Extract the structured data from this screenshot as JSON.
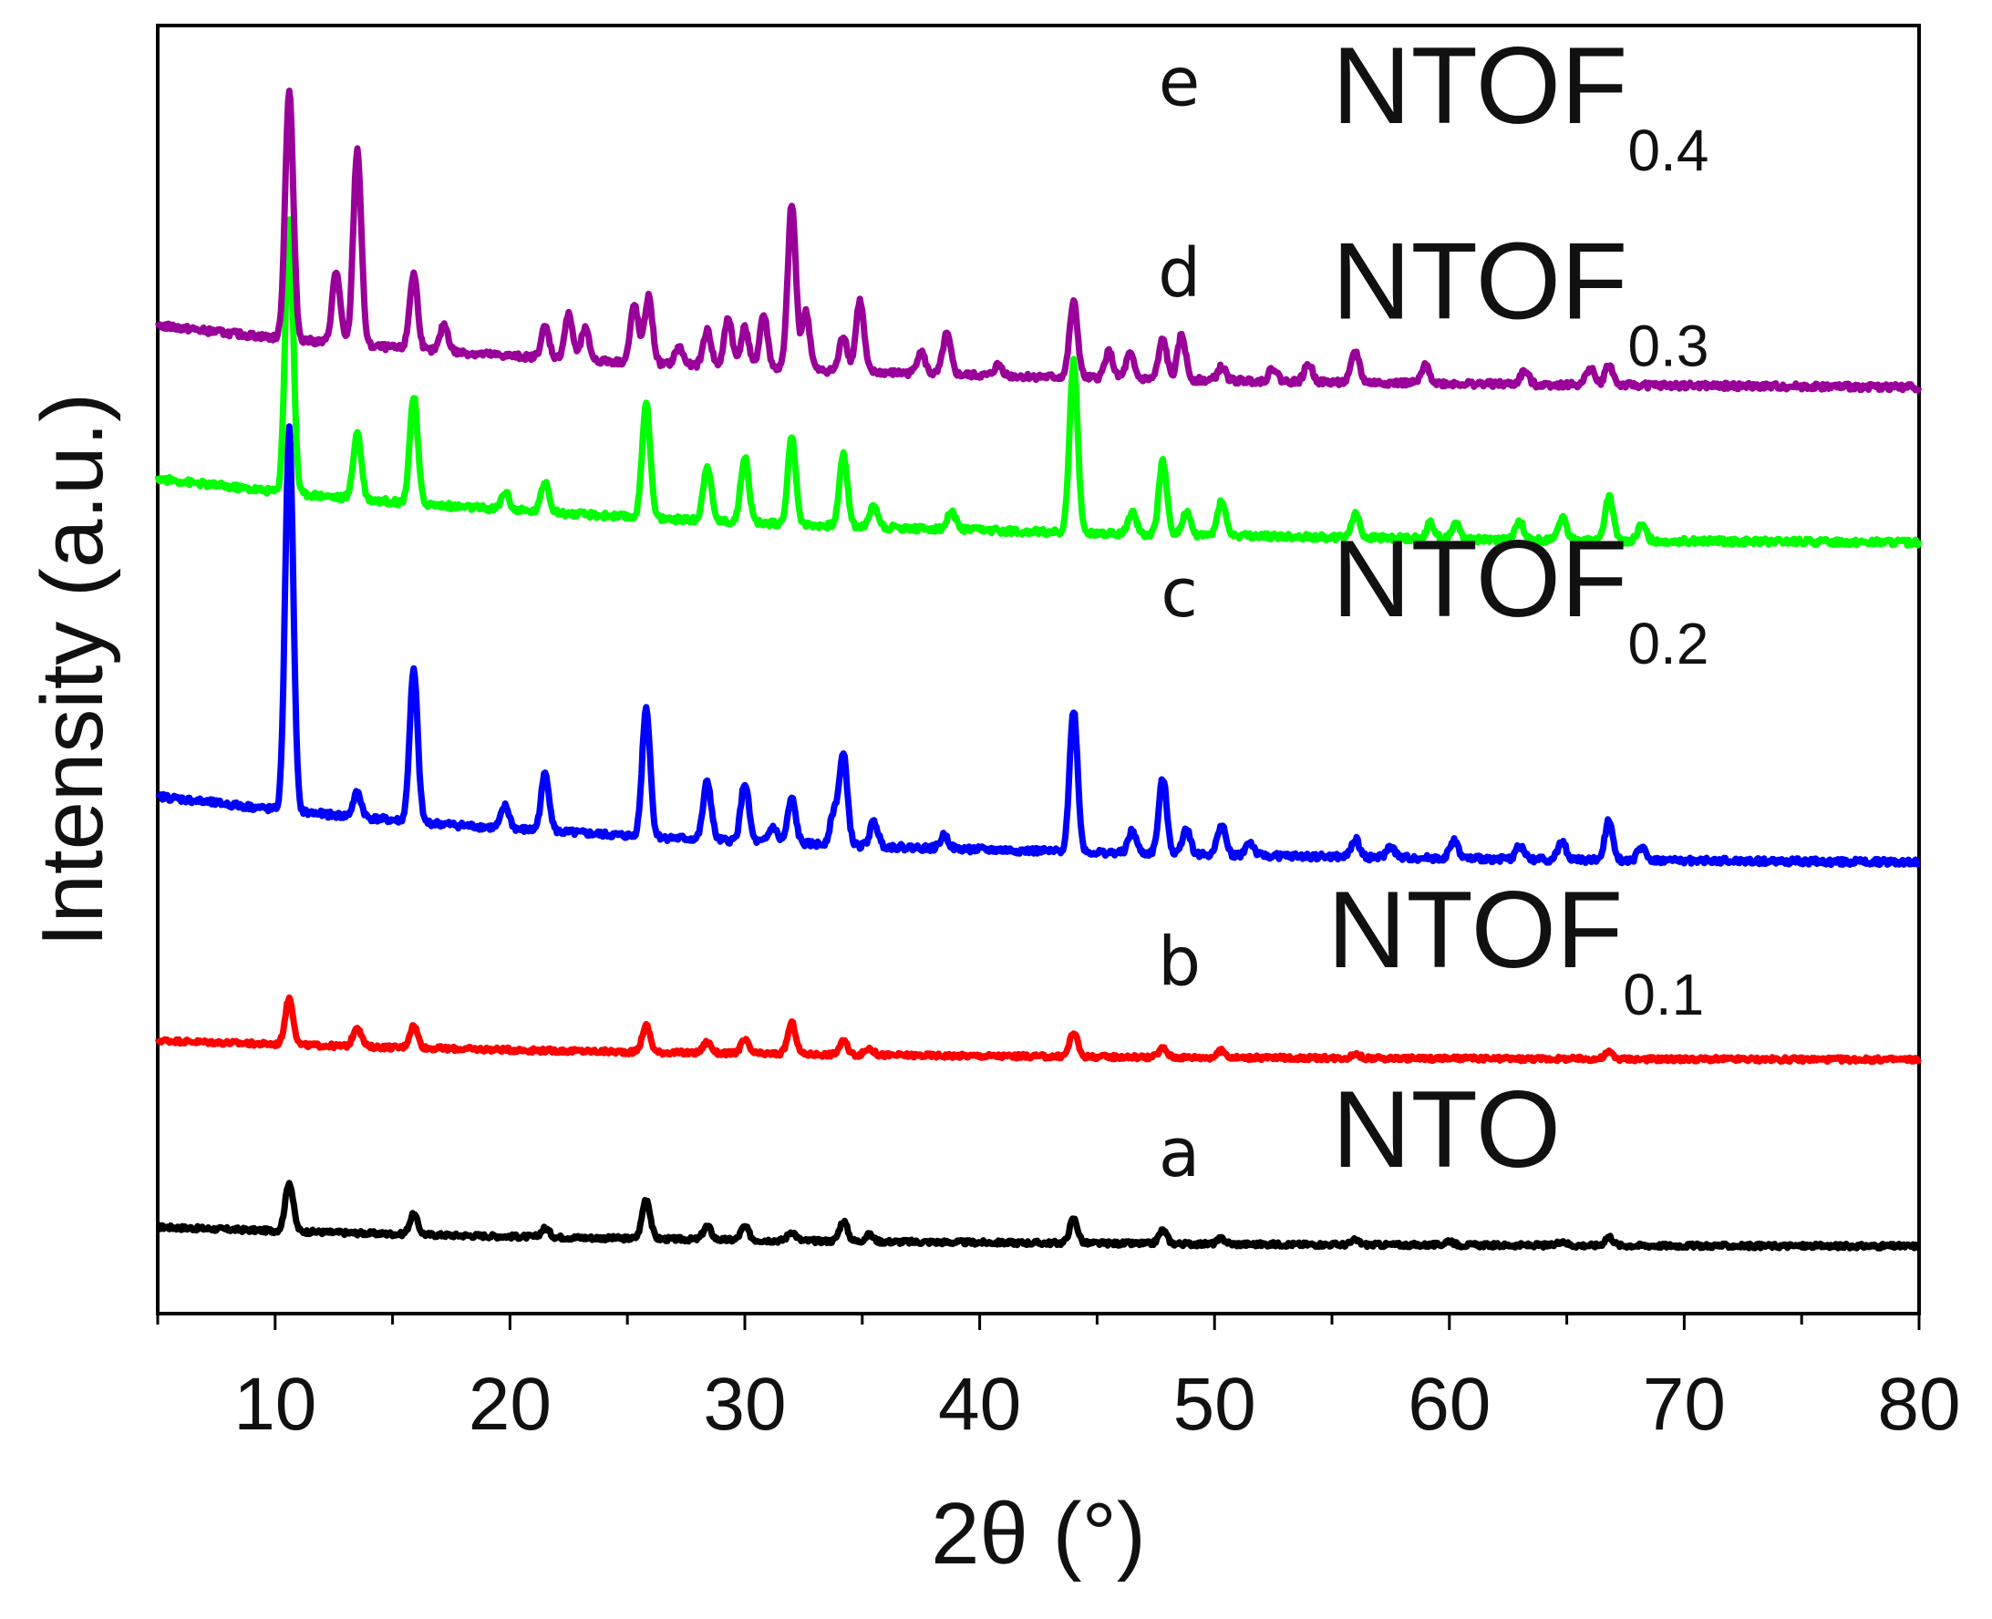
{
  "chart_data": {
    "type": "line",
    "title": "",
    "xlabel": "2θ (°)",
    "ylabel": "Intensity (a.u.)",
    "xlim": [
      5,
      80
    ],
    "xticks": [
      10,
      20,
      30,
      40,
      50,
      60,
      70,
      80
    ],
    "yticks_shown": false,
    "grid": false,
    "legend": "inline labels at right of each curve",
    "series": [
      {
        "name": "NTO",
        "letter": "a",
        "label_main": "NTO",
        "label_sub": "",
        "color": "#000000",
        "offset": 0.0,
        "baseline_start": 0.45,
        "baseline_end": 0.0,
        "noise": 0.05,
        "peaks": [
          [
            10.6,
            1.1
          ],
          [
            15.9,
            0.45
          ],
          [
            21.5,
            0.2
          ],
          [
            25.8,
            0.9
          ],
          [
            28.4,
            0.3
          ],
          [
            30.0,
            0.3
          ],
          [
            32.0,
            0.2
          ],
          [
            34.2,
            0.45
          ],
          [
            35.3,
            0.15
          ],
          [
            44.0,
            0.55
          ],
          [
            47.8,
            0.3
          ],
          [
            50.3,
            0.12
          ],
          [
            56.0,
            0.1
          ],
          [
            60.0,
            0.1
          ],
          [
            64.8,
            0.1
          ],
          [
            66.8,
            0.2
          ]
        ]
      },
      {
        "name": "NTOF0.1",
        "letter": "b",
        "label_main": "NTOF",
        "label_sub": "0.1",
        "color": "#ff0000",
        "offset": 4.2,
        "baseline_start": 0.45,
        "baseline_end": 0.0,
        "noise": 0.05,
        "peaks": [
          [
            10.6,
            1.05
          ],
          [
            13.5,
            0.45
          ],
          [
            15.9,
            0.5
          ],
          [
            25.8,
            0.6
          ],
          [
            28.4,
            0.25
          ],
          [
            30.0,
            0.3
          ],
          [
            32.0,
            0.7
          ],
          [
            34.2,
            0.3
          ],
          [
            35.3,
            0.15
          ],
          [
            44.0,
            0.55
          ],
          [
            47.8,
            0.2
          ],
          [
            50.3,
            0.15
          ],
          [
            56.0,
            0.1
          ],
          [
            66.8,
            0.15
          ]
        ]
      },
      {
        "name": "NTOF0.2",
        "letter": "c",
        "label_main": "NTOF",
        "label_sub": "0.2",
        "color": "#0000ff",
        "offset": 8.6,
        "baseline_start": 1.55,
        "baseline_end": 0.0,
        "noise": 0.07,
        "peaks": [
          [
            10.6,
            8.6
          ],
          [
            13.5,
            0.55
          ],
          [
            15.9,
            3.4
          ],
          [
            19.8,
            0.5
          ],
          [
            21.5,
            1.3
          ],
          [
            25.8,
            2.9
          ],
          [
            28.4,
            1.3
          ],
          [
            30.0,
            1.3
          ],
          [
            31.2,
            0.35
          ],
          [
            32.0,
            1.0
          ],
          [
            33.8,
            0.7
          ],
          [
            34.2,
            2.0
          ],
          [
            35.5,
            0.55
          ],
          [
            38.5,
            0.3
          ],
          [
            44.0,
            3.2
          ],
          [
            46.5,
            0.5
          ],
          [
            47.8,
            1.7
          ],
          [
            48.8,
            0.6
          ],
          [
            50.3,
            0.7
          ],
          [
            51.5,
            0.3
          ],
          [
            56.0,
            0.4
          ],
          [
            57.5,
            0.25
          ],
          [
            60.2,
            0.4
          ],
          [
            63.0,
            0.3
          ],
          [
            64.8,
            0.4
          ],
          [
            66.8,
            0.9
          ],
          [
            68.2,
            0.3
          ]
        ]
      },
      {
        "name": "NTOF0.3",
        "letter": "d",
        "label_main": "NTOF",
        "label_sub": "0.3",
        "color": "#00ff00",
        "offset": 15.8,
        "baseline_start": 1.5,
        "baseline_end": 0.0,
        "noise": 0.07,
        "peaks": [
          [
            10.6,
            6.2
          ],
          [
            13.5,
            1.5
          ],
          [
            15.9,
            2.4
          ],
          [
            19.8,
            0.4
          ],
          [
            21.5,
            0.7
          ],
          [
            25.8,
            2.6
          ],
          [
            28.4,
            1.25
          ],
          [
            30.0,
            1.5
          ],
          [
            32.0,
            1.95
          ],
          [
            34.2,
            1.6
          ],
          [
            35.5,
            0.5
          ],
          [
            38.8,
            0.4
          ],
          [
            44.0,
            3.85
          ],
          [
            46.5,
            0.5
          ],
          [
            47.8,
            1.65
          ],
          [
            48.8,
            0.5
          ],
          [
            50.3,
            0.8
          ],
          [
            56.0,
            0.55
          ],
          [
            59.2,
            0.35
          ],
          [
            60.3,
            0.35
          ],
          [
            63.0,
            0.4
          ],
          [
            64.8,
            0.5
          ],
          [
            66.8,
            1.0
          ],
          [
            68.2,
            0.35
          ]
        ]
      },
      {
        "name": "NTOF0.4",
        "letter": "e",
        "label_main": "NTOF",
        "label_sub": "0.4",
        "color": "#990099",
        "offset": 19.3,
        "baseline_start": 1.45,
        "baseline_end": 0.0,
        "noise": 0.07,
        "peaks": [
          [
            10.6,
            5.6
          ],
          [
            12.6,
            1.6
          ],
          [
            13.5,
            4.4
          ],
          [
            15.9,
            1.7
          ],
          [
            17.2,
            0.6
          ],
          [
            21.5,
            0.7
          ],
          [
            22.5,
            1.0
          ],
          [
            23.2,
            0.7
          ],
          [
            25.3,
            1.3
          ],
          [
            25.9,
            1.5
          ],
          [
            27.2,
            0.4
          ],
          [
            28.4,
            0.8
          ],
          [
            29.3,
            1.1
          ],
          [
            30.0,
            0.9
          ],
          [
            30.8,
            1.2
          ],
          [
            32.0,
            3.7
          ],
          [
            32.6,
            1.3
          ],
          [
            34.2,
            0.8
          ],
          [
            34.9,
            1.6
          ],
          [
            37.5,
            0.5
          ],
          [
            38.6,
            0.9
          ],
          [
            40.8,
            0.25
          ],
          [
            44.0,
            1.7
          ],
          [
            45.5,
            0.6
          ],
          [
            46.4,
            0.55
          ],
          [
            47.8,
            0.9
          ],
          [
            48.6,
            1.0
          ],
          [
            50.3,
            0.3
          ],
          [
            52.5,
            0.3
          ],
          [
            54.0,
            0.4
          ],
          [
            56.0,
            0.7
          ],
          [
            59.0,
            0.4
          ],
          [
            63.2,
            0.3
          ],
          [
            66.0,
            0.4
          ],
          [
            66.8,
            0.45
          ]
        ]
      }
    ]
  }
}
